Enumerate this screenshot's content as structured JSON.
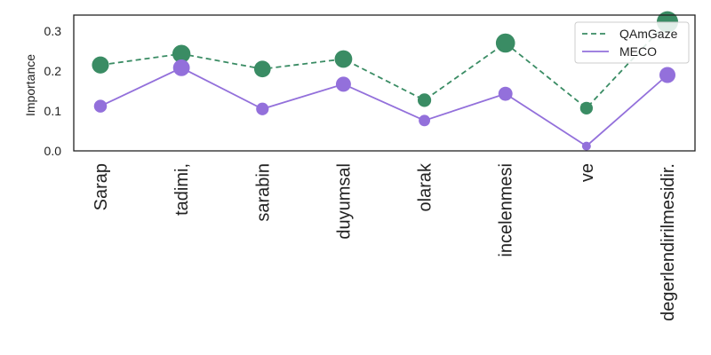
{
  "chart_data": {
    "type": "line",
    "categories": [
      "Sarap",
      "tadimi,",
      "sarabin",
      "duyumsal",
      "olarak",
      "incelenmesi",
      "ve",
      "degerlendirilmesidir."
    ],
    "ylabel": "Importance",
    "ylim": [
      0,
      0.34
    ],
    "yticks": [
      "0.0",
      "0.1",
      "0.2",
      "0.3"
    ],
    "ytick_values": [
      0,
      0.1,
      0.2,
      0.3
    ],
    "grid": false,
    "legend_position": "top-right",
    "series": [
      {
        "name": "QAmGaze",
        "color": "#3a8c64",
        "line_style": "dashed",
        "values": [
          0.215,
          0.243,
          0.205,
          0.23,
          0.127,
          0.27,
          0.107,
          0.323
        ]
      },
      {
        "name": "MECO",
        "color": "#9370db",
        "line_style": "solid",
        "values": [
          0.112,
          0.208,
          0.105,
          0.167,
          0.076,
          0.143,
          0.012,
          0.19
        ]
      }
    ]
  }
}
